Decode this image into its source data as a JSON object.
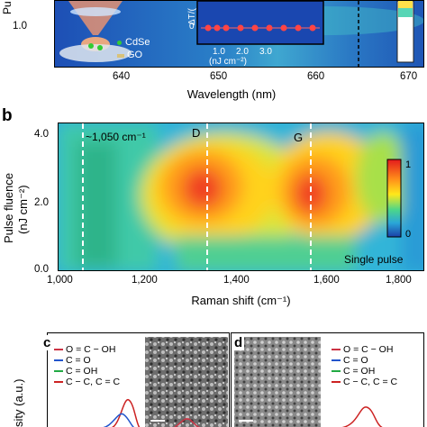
{
  "panel_a": {
    "y_label_fragment": "Pu",
    "y_tick": "1.0",
    "x_label": "Wavelength (nm)",
    "x_ticks": [
      "640",
      "650",
      "660",
      "670"
    ],
    "legend": [
      {
        "label": "CdSe",
        "color": "#33cc33"
      },
      {
        "label": "GO",
        "color": "#d9c27a"
      }
    ],
    "inset": {
      "y_label": "ΔT/(",
      "y_tick": "0",
      "x_ticks": [
        "1.0",
        "2.0",
        "3.0"
      ],
      "x_label": "(nJ cm⁻²)"
    }
  },
  "panel_b": {
    "letter": "b",
    "y_label_line1": "Pulse fluence",
    "y_label_line2": "(nJ cm⁻²)",
    "y_ticks": [
      "4.0",
      "2.0",
      "0.0"
    ],
    "x_label": "Raman shift (cm⁻¹)",
    "x_ticks": [
      "1,000",
      "1,200",
      "1,400",
      "1,600",
      "1,800"
    ],
    "annotations": [
      "~1,050 cm⁻¹",
      "D",
      "G"
    ],
    "note": "Single pulse",
    "colorbar": {
      "max_label": "1",
      "min_label": "0"
    }
  },
  "panel_c": {
    "letter": "c",
    "y_label": "sity (a.u.)",
    "legend": [
      {
        "label": "O = C − OH",
        "color": "#cc3344"
      },
      {
        "label": "C = O",
        "color": "#2255cc"
      },
      {
        "label": "C = OH",
        "color": "#22aa44"
      },
      {
        "label": "C − C, C = C",
        "color": "#cc2222"
      }
    ]
  },
  "panel_d": {
    "letter": "d",
    "legend": [
      {
        "label": "O = C − OH",
        "color": "#cc3344"
      },
      {
        "label": "C = O",
        "color": "#2255cc"
      },
      {
        "label": "C = OH",
        "color": "#22aa44"
      },
      {
        "label": "C − C, C = C",
        "color": "#cc2222"
      }
    ]
  },
  "colors": {
    "map_low": "#1a3fa8",
    "map_mid": "#3fd0a0",
    "map_high": "#e31a1c",
    "dashed_line": "#ffffff"
  }
}
